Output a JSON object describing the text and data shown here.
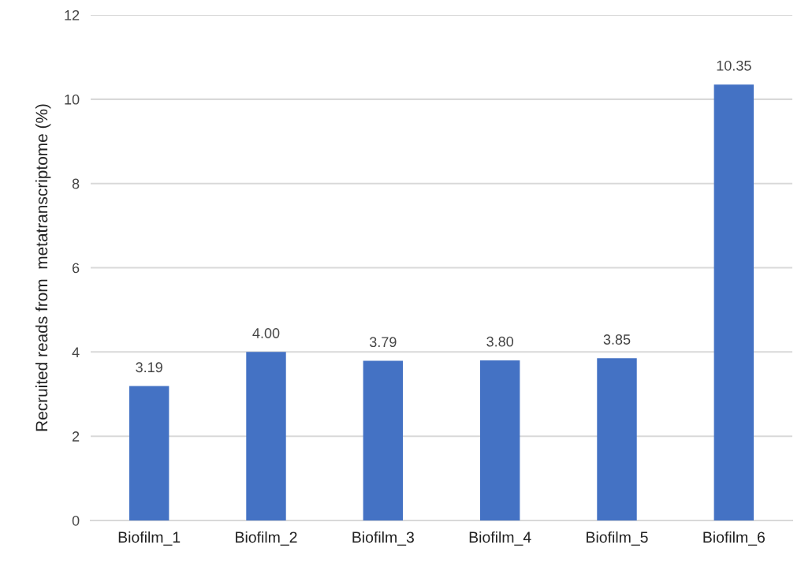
{
  "chart_data": {
    "type": "bar",
    "ylabel": "Recruited reads from  metatranscriptome (%)",
    "categories": [
      "Biofilm_1",
      "Biofilm_2",
      "Biofilm_3",
      "Biofilm_4",
      "Biofilm_5",
      "Biofilm_6"
    ],
    "values": [
      3.19,
      4.0,
      3.79,
      3.8,
      3.85,
      10.35
    ],
    "value_labels": [
      "3.19",
      "4.00",
      "3.79",
      "3.80",
      "3.85",
      "10.35"
    ],
    "color": "#4472c4",
    "ylim": [
      0,
      12
    ],
    "yticks": [
      0,
      2,
      4,
      6,
      8,
      10,
      12
    ],
    "grid": "y",
    "legend": false
  }
}
